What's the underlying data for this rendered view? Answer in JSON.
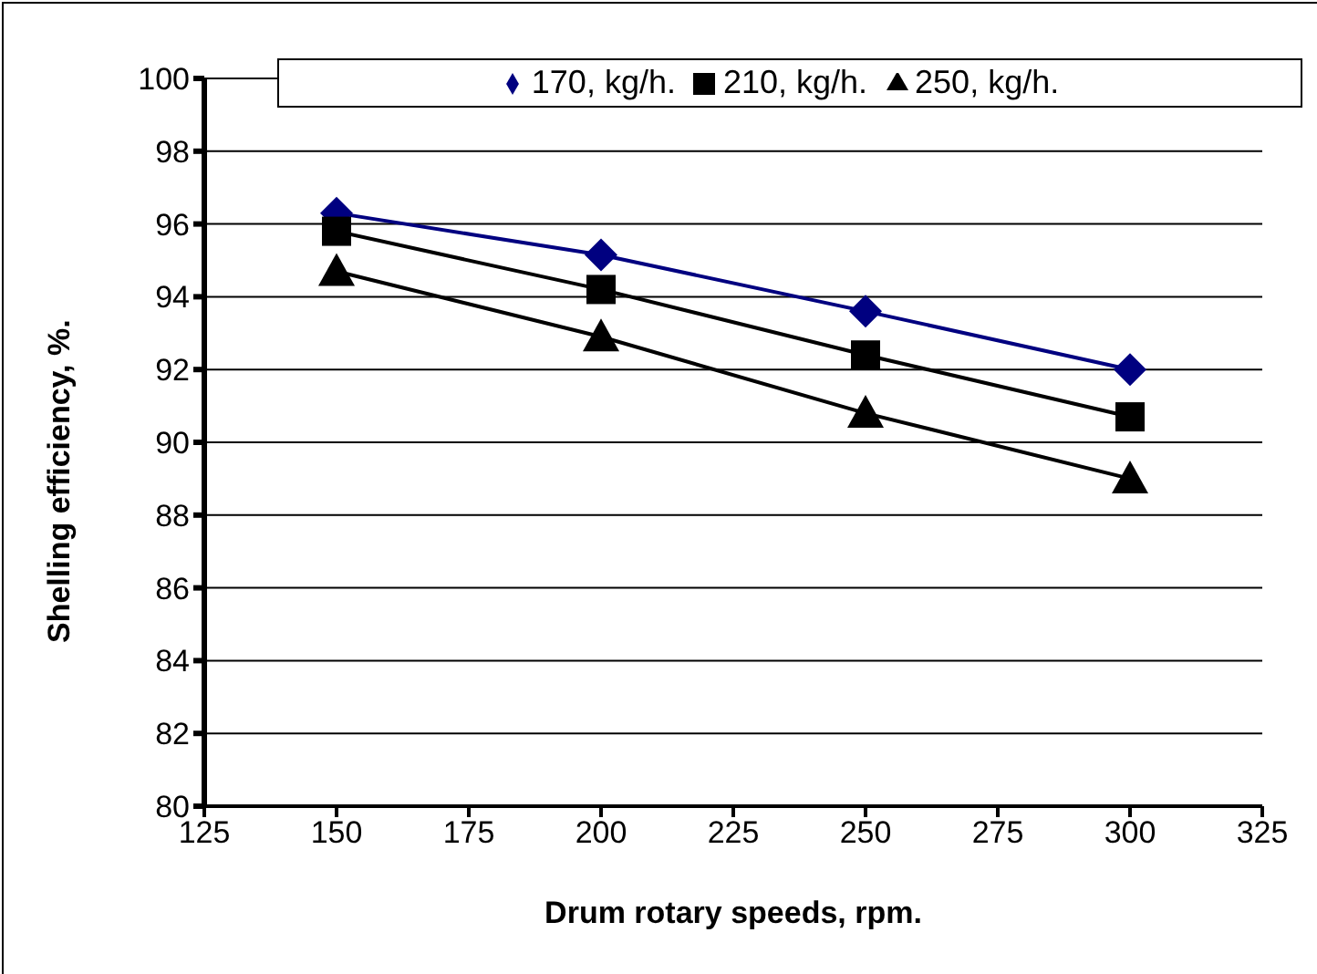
{
  "chart_data": {
    "type": "line",
    "xlabel": "Drum rotary speeds, rpm.",
    "ylabel": "Shelling efficiency, %.",
    "x": [
      150,
      200,
      250,
      300
    ],
    "series": [
      {
        "name": "170, kg/h.",
        "color": "#000080",
        "marker": "diamond",
        "values": [
          96.3,
          95.15,
          93.6,
          92.0
        ]
      },
      {
        "name": "210, kg/h.",
        "color": "#000000",
        "marker": "square",
        "values": [
          95.8,
          94.2,
          92.4,
          90.7
        ]
      },
      {
        "name": "250, kg/h.",
        "color": "#000000",
        "marker": "triangle",
        "values": [
          94.7,
          92.9,
          90.8,
          89.0
        ]
      }
    ],
    "xlim": [
      125,
      325
    ],
    "xticks": [
      125,
      150,
      175,
      200,
      225,
      250,
      275,
      300,
      325
    ],
    "ylim": [
      80,
      100
    ],
    "yticks": [
      80,
      82,
      84,
      86,
      88,
      90,
      92,
      94,
      96,
      98,
      100
    ],
    "grid": "y",
    "legend": "top",
    "line_style": "solid"
  }
}
